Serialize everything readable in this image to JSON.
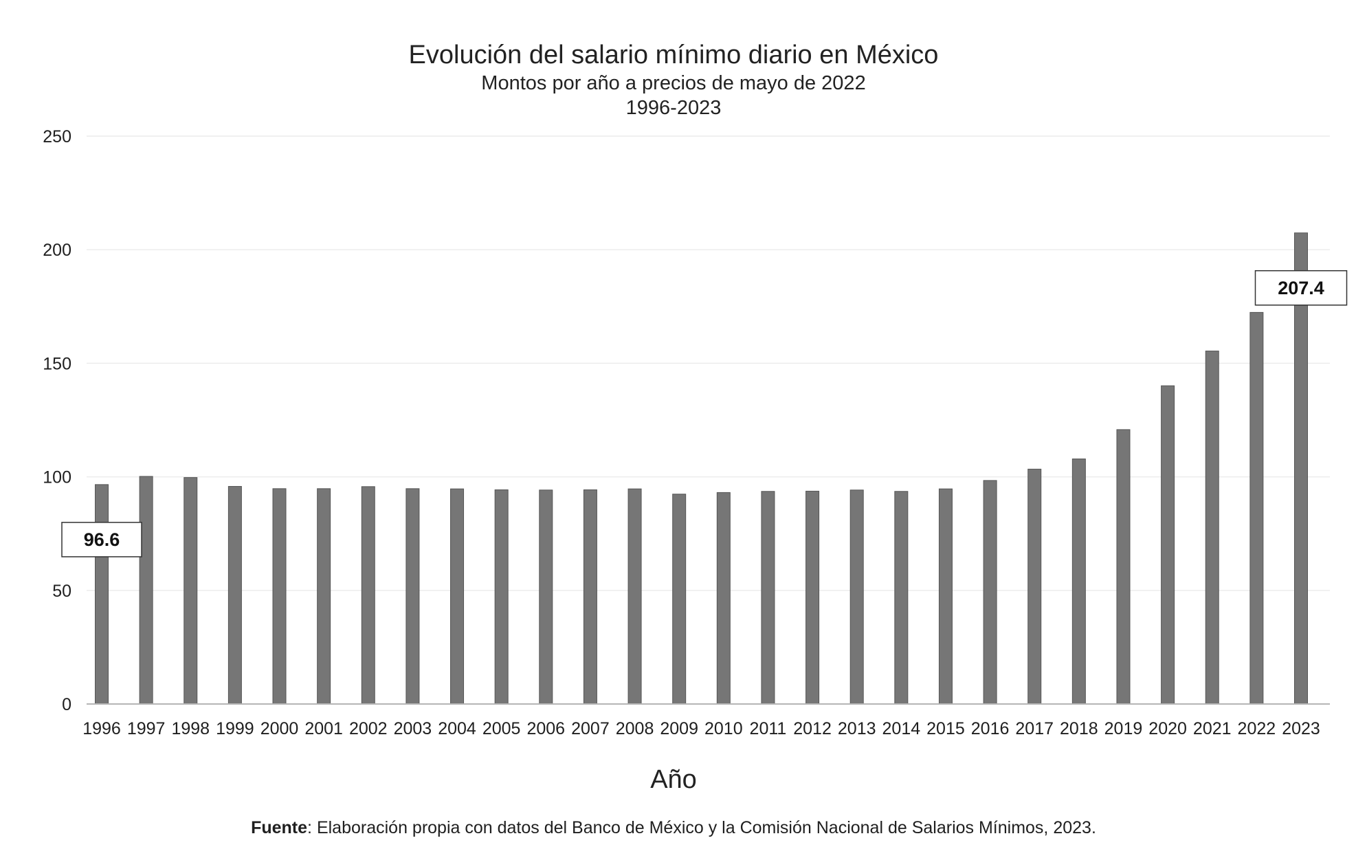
{
  "chart_data": {
    "type": "bar",
    "title": "Evolución del salario mínimo diario en México",
    "subtitle": "Montos por año a precios de mayo de 2022",
    "period": "1996-2023",
    "xlabel": "Año",
    "ylabel": "",
    "ylim": [
      0,
      250
    ],
    "yticks": [
      0,
      50,
      100,
      150,
      200,
      250
    ],
    "grid": true,
    "legend": "none",
    "categories": [
      "1996",
      "1997",
      "1998",
      "1999",
      "2000",
      "2001",
      "2002",
      "2003",
      "2004",
      "2005",
      "2006",
      "2007",
      "2008",
      "2009",
      "2010",
      "2011",
      "2012",
      "2013",
      "2014",
      "2015",
      "2016",
      "2017",
      "2018",
      "2019",
      "2020",
      "2021",
      "2022",
      "2023"
    ],
    "values": [
      96.6,
      100.2,
      99.7,
      95.8,
      94.8,
      94.8,
      95.7,
      94.8,
      94.7,
      94.3,
      94.2,
      94.3,
      94.7,
      92.4,
      93.1,
      93.6,
      93.7,
      94.2,
      93.6,
      94.7,
      98.4,
      103.4,
      107.9,
      120.8,
      140.1,
      155.4,
      172.4,
      207.4
    ],
    "bar_color": "#767676",
    "callouts": [
      {
        "category": "1996",
        "text": "96.6"
      },
      {
        "category": "2023",
        "text": "207.4"
      }
    ]
  },
  "source": {
    "label": "Fuente",
    "text": ": Elaboración propia con datos del Banco de México y la Comisión Nacional de Salarios Mínimos, 2023."
  }
}
